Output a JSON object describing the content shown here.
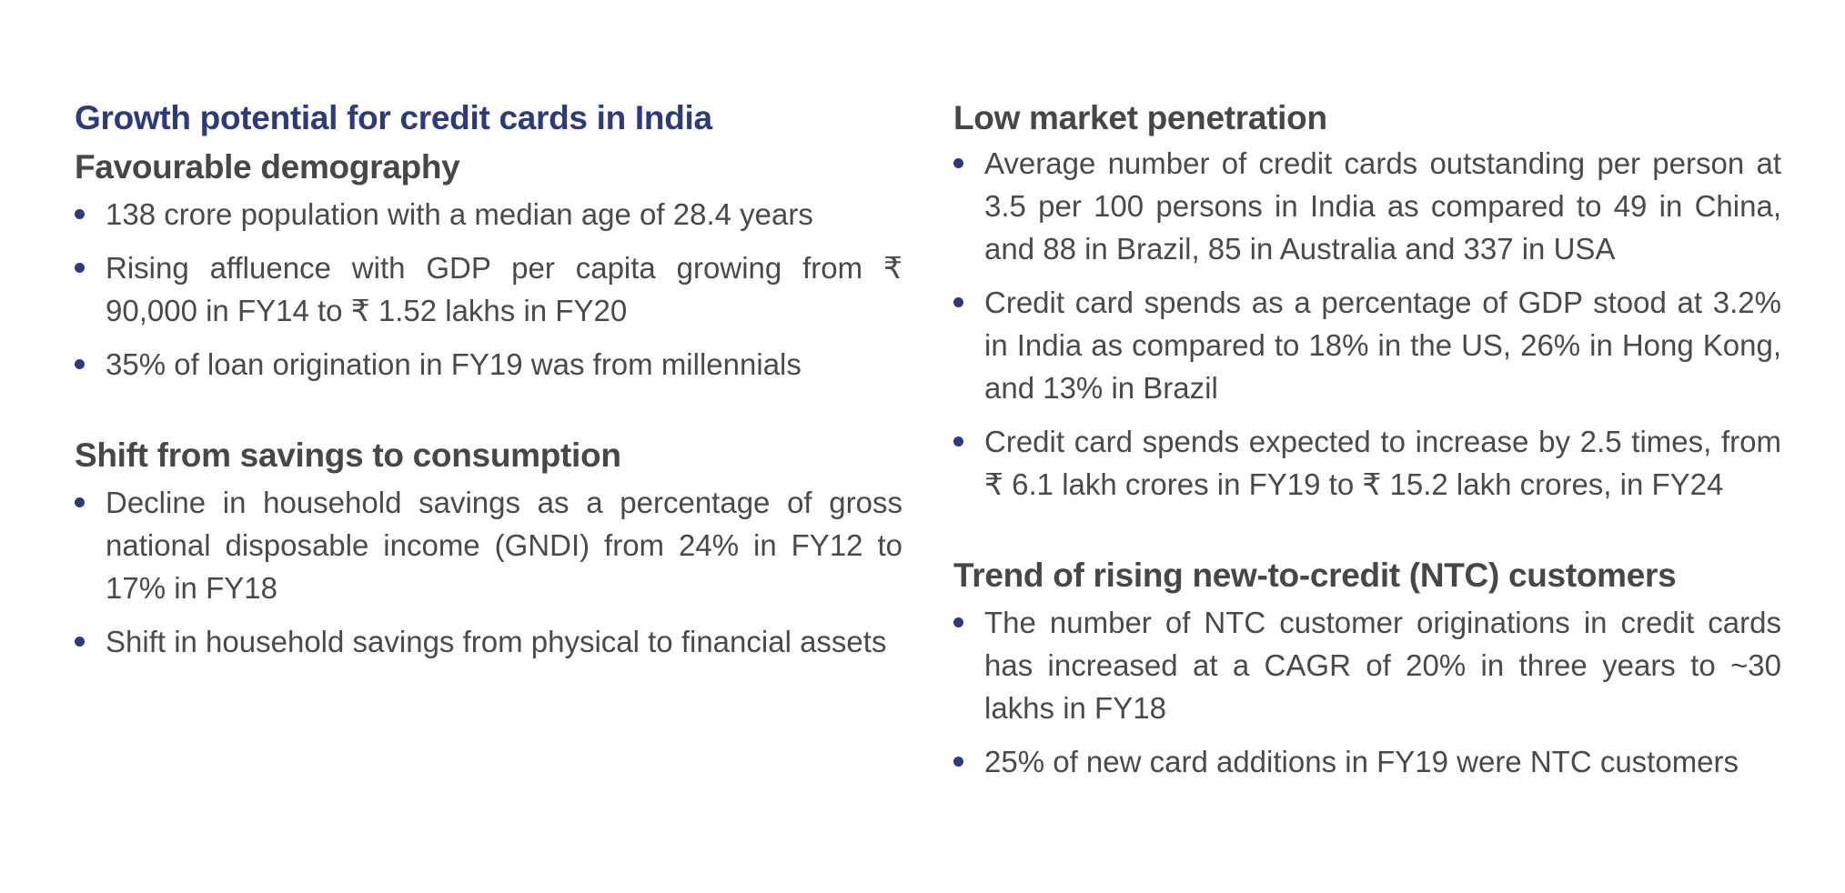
{
  "left": {
    "title": "Growth potential for credit cards in India",
    "sections": [
      {
        "heading": "Favourable demography",
        "bullets": [
          "138 crore population with a median age of 28.4 years",
          "Rising affluence with GDP per capita growing from ₹ 90,000 in FY14 to ₹ 1.52 lakhs in FY20",
          "35% of loan origination in FY19 was from millennials"
        ]
      },
      {
        "heading": "Shift from savings to consumption",
        "bullets": [
          "Decline in household savings as a percentage of gross national disposable income (GNDI) from 24% in FY12 to 17% in FY18",
          "Shift in household savings from physical to financial assets"
        ]
      }
    ]
  },
  "right": {
    "sections": [
      {
        "heading": "Low market penetration",
        "bullets": [
          "Average number of credit cards outstanding per person at 3.5 per 100 persons in India as compared to 49 in China, and 88 in Brazil, 85 in Australia and 337 in USA",
          "Credit card spends as a percentage of GDP stood at 3.2% in India as compared to 18% in the US, 26% in Hong Kong, and 13% in Brazil",
          "Credit card spends expected to increase by 2.5 times, from ₹ 6.1 lakh crores in FY19 to ₹ 15.2 lakh crores, in FY24"
        ]
      },
      {
        "heading": "Trend of rising new-to-credit (NTC) customers",
        "bullets": [
          "The number of NTC customer originations in credit cards has increased at a CAGR of 20% in three years to ~30 lakhs in FY18",
          "25% of new card additions in FY19 were NTC customers"
        ]
      }
    ]
  }
}
